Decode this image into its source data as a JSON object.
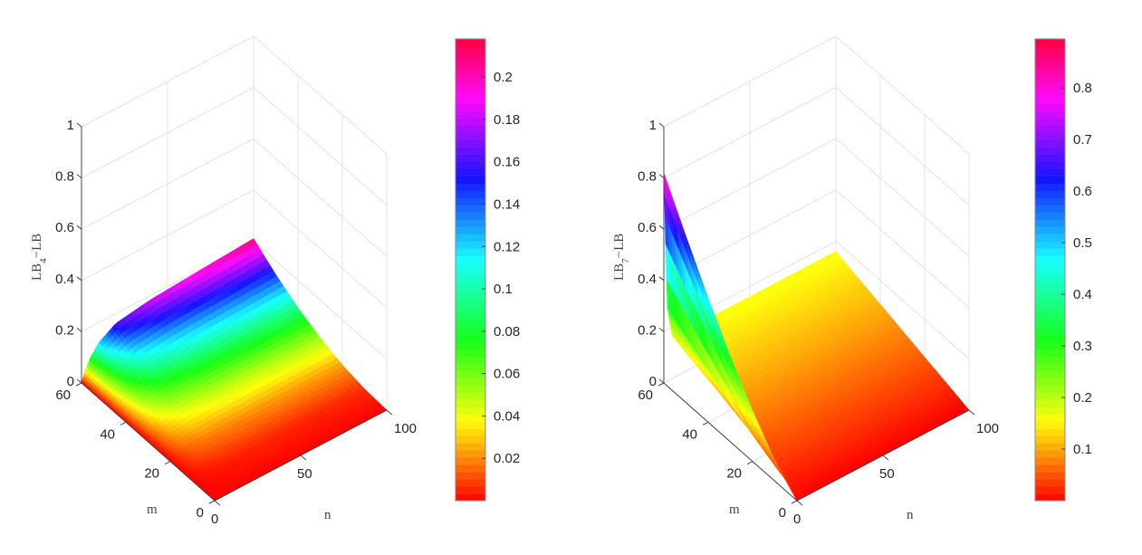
{
  "chart_data": [
    {
      "type": "surface3d",
      "xlabel": "n",
      "ylabel": "m",
      "zlabel": {
        "base": "LB",
        "sub": "4",
        "rest": "−LB"
      },
      "n_ticks": [
        0,
        50,
        100
      ],
      "m_ticks": [
        0,
        20,
        40,
        60
      ],
      "z_ticks": [
        0,
        0.2,
        0.4,
        0.6,
        0.8,
        1
      ],
      "z_tick_labels": [
        "0",
        "0.2",
        "0.4",
        "0.6",
        "0.8",
        "1"
      ],
      "xlim": [
        0,
        100
      ],
      "ylim": [
        0,
        60
      ],
      "zlim": [
        0,
        1
      ],
      "grid": true,
      "colormap": "hsv",
      "colorbar": {
        "range": [
          0,
          0.218
        ],
        "ticks": [
          0.02,
          0.04,
          0.06,
          0.08,
          0.1,
          0.12,
          0.14,
          0.16,
          0.18,
          0.2
        ],
        "tick_labels": [
          "0.02",
          "0.04",
          "0.06",
          "0.08",
          "0.1",
          "0.12",
          "0.14",
          "0.16",
          "0.18",
          "0.2"
        ]
      },
      "grid_m": [
        0,
        10,
        20,
        30,
        40,
        50,
        60
      ],
      "grid_n": [
        0,
        2,
        5,
        10,
        20,
        40,
        70,
        100
      ],
      "z": [
        [
          0,
          0,
          0,
          0,
          0,
          0,
          0,
          0
        ],
        [
          0,
          0.001,
          0.002,
          0.003,
          0.004,
          0.005,
          0.005,
          0.006
        ],
        [
          0,
          0.004,
          0.009,
          0.014,
          0.018,
          0.02,
          0.022,
          0.023
        ],
        [
          0,
          0.009,
          0.019,
          0.03,
          0.04,
          0.046,
          0.049,
          0.053
        ],
        [
          0,
          0.017,
          0.035,
          0.054,
          0.072,
          0.081,
          0.088,
          0.093
        ],
        [
          0,
          0.026,
          0.054,
          0.085,
          0.112,
          0.127,
          0.137,
          0.146
        ],
        [
          0,
          0.038,
          0.078,
          0.122,
          0.162,
          0.183,
          0.197,
          0.21
        ]
      ]
    },
    {
      "type": "surface3d",
      "xlabel": "n",
      "ylabel": "m",
      "zlabel": {
        "base": "LB",
        "sub": "7",
        "rest": "−LB"
      },
      "n_ticks": [
        0,
        50,
        100
      ],
      "m_ticks": [
        0,
        20,
        40,
        60
      ],
      "z_ticks": [
        0,
        0.2,
        0.4,
        0.6,
        0.8,
        1
      ],
      "z_tick_labels": [
        "0",
        "0.2",
        "0.4",
        "0.6",
        "0.8",
        "1"
      ],
      "xlim": [
        0,
        100
      ],
      "ylim": [
        0,
        60
      ],
      "zlim": [
        0,
        1
      ],
      "grid": true,
      "colormap": "hsv",
      "colorbar": {
        "range": [
          0,
          0.895
        ],
        "ticks": [
          0.1,
          0.2,
          0.3,
          0.4,
          0.5,
          0.6,
          0.7,
          0.8
        ],
        "tick_labels": [
          "0.1",
          "0.2",
          "0.3",
          "0.4",
          "0.5",
          "0.6",
          "0.7",
          "0.8"
        ]
      },
      "grid_m": [
        0,
        10,
        20,
        30,
        40,
        50,
        60
      ],
      "grid_n": [
        0,
        2,
        5,
        10,
        20,
        40,
        70,
        100
      ],
      "z": [
        [
          0,
          0,
          0,
          0,
          0,
          0,
          0,
          0
        ],
        [
          0.08,
          0.034,
          0.025,
          0.026,
          0.027,
          0.027,
          0.027,
          0.027
        ],
        [
          0.197,
          0.077,
          0.05,
          0.051,
          0.053,
          0.053,
          0.053,
          0.053
        ],
        [
          0.333,
          0.126,
          0.077,
          0.077,
          0.08,
          0.08,
          0.08,
          0.08
        ],
        [
          0.484,
          0.178,
          0.104,
          0.103,
          0.107,
          0.107,
          0.107,
          0.107
        ],
        [
          0.648,
          0.233,
          0.131,
          0.128,
          0.133,
          0.133,
          0.133,
          0.133
        ],
        [
          0.82,
          0.291,
          0.16,
          0.154,
          0.16,
          0.16,
          0.16,
          0.16
        ]
      ]
    }
  ]
}
